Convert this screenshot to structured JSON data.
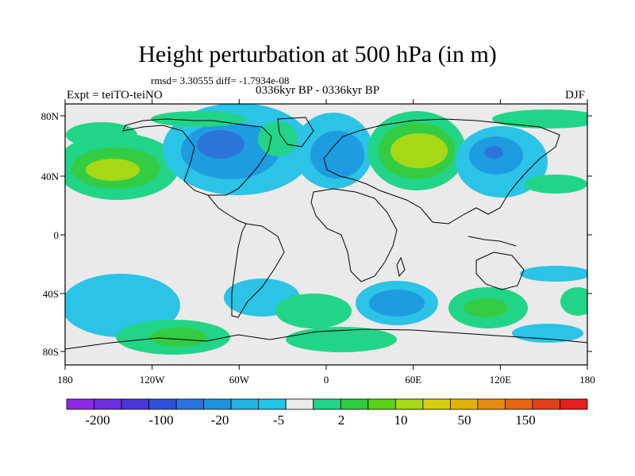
{
  "title": "Height perturbation at 500 hPa (in m)",
  "stats": "rmsd= 3.30555 diff= -1.7934e-08",
  "expt": "Expt = teiTO-teiNO",
  "period": "0336kyr BP - 0336kyr BP",
  "season": "DJF",
  "lat_labels": [
    "80N",
    "40N",
    "0",
    "40S",
    "80S"
  ],
  "lon_labels": [
    "180",
    "120W",
    "60W",
    "0",
    "60E",
    "120E",
    "180"
  ],
  "colorbar": {
    "labels": [
      "-200",
      "-100",
      "-20",
      "-5",
      "2",
      "10",
      "50",
      "150"
    ],
    "colors": [
      "#8a2be2",
      "#6a2ee0",
      "#4b35d6",
      "#2f4fd8",
      "#2b72dc",
      "#1f93df",
      "#22b2e0",
      "#22c4e4",
      "#eaeaea",
      "#22d487",
      "#2ecc3f",
      "#58d21a",
      "#a6d816",
      "#d6ce10",
      "#e2b20c",
      "#e58c10",
      "#e46612",
      "#e0401a",
      "#e21e1e"
    ]
  },
  "map_colors": {
    "background": "#eaeaea",
    "light_blue": "#2bc3e6",
    "mid_blue": "#1e9ce0",
    "deep_blue": "#2d74d8",
    "green": "#22d487",
    "bright_green": "#34cc43",
    "yellow_green": "#a6d816"
  }
}
